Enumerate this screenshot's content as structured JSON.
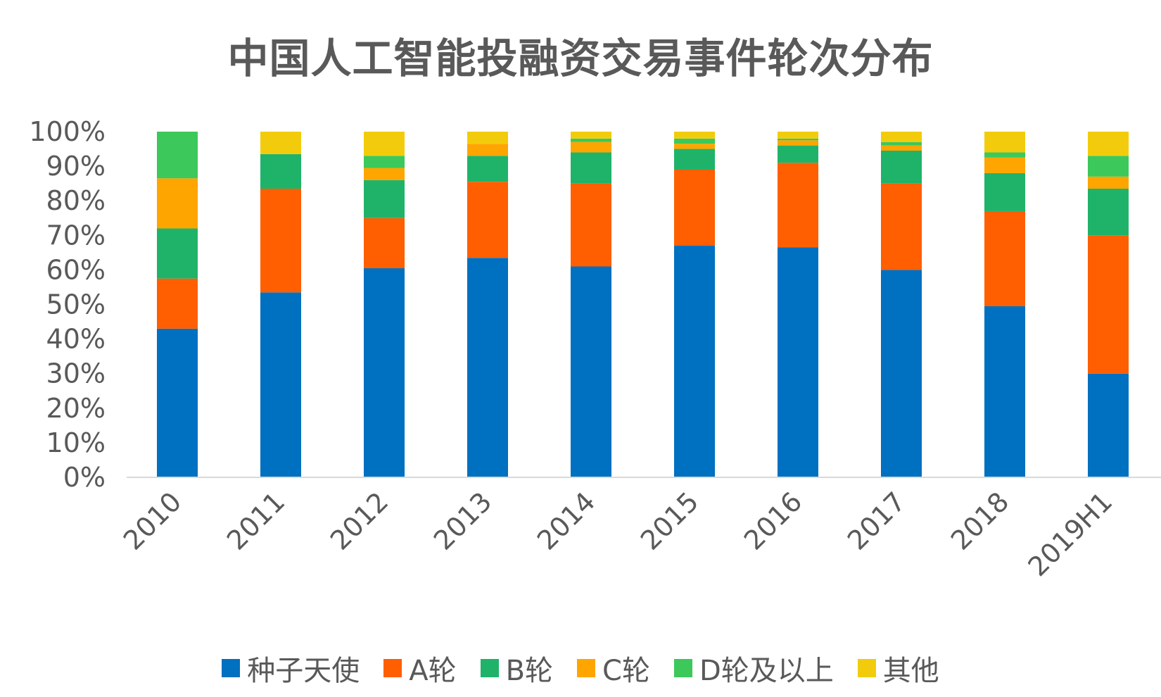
{
  "chart_data": {
    "type": "bar",
    "stacked": true,
    "percent_stacked": true,
    "title": "中国人工智能投融资交易事件轮次分布",
    "xlabel": "",
    "ylabel": "",
    "ylim": [
      0,
      100
    ],
    "y_ticks": [
      "0%",
      "10%",
      "20%",
      "30%",
      "40%",
      "50%",
      "60%",
      "70%",
      "80%",
      "90%",
      "100%"
    ],
    "grid": false,
    "legend_position": "bottom",
    "categories": [
      "2010",
      "2011",
      "2012",
      "2013",
      "2014",
      "2015",
      "2016",
      "2017",
      "2018",
      "2019H1"
    ],
    "series": [
      {
        "name": "种子天使",
        "color": "#0070C0",
        "values": [
          43,
          53.5,
          60.5,
          63.5,
          61,
          67,
          66.5,
          60,
          49.5,
          30
        ]
      },
      {
        "name": "A轮",
        "color": "#FF5F00",
        "values": [
          14.5,
          30,
          14.5,
          22,
          24,
          22,
          24.5,
          25,
          27.5,
          40
        ]
      },
      {
        "name": "B轮",
        "color": "#1FB36A",
        "values": [
          14.5,
          10,
          11,
          7.5,
          9,
          6,
          5,
          9.5,
          11,
          13.5
        ]
      },
      {
        "name": "C轮",
        "color": "#FFA500",
        "values": [
          14.5,
          0,
          3.5,
          3.5,
          3,
          1.5,
          1.5,
          1.5,
          4.5,
          3.5
        ]
      },
      {
        "name": "D轮及以上",
        "color": "#3CC85A",
        "values": [
          13.5,
          0,
          3.5,
          0,
          1,
          1.5,
          0.5,
          1,
          1.5,
          6
        ]
      },
      {
        "name": "其他",
        "color": "#F2CC0C",
        "values": [
          0,
          6.5,
          7,
          3.5,
          2,
          2,
          2,
          3,
          6,
          7
        ]
      }
    ]
  }
}
